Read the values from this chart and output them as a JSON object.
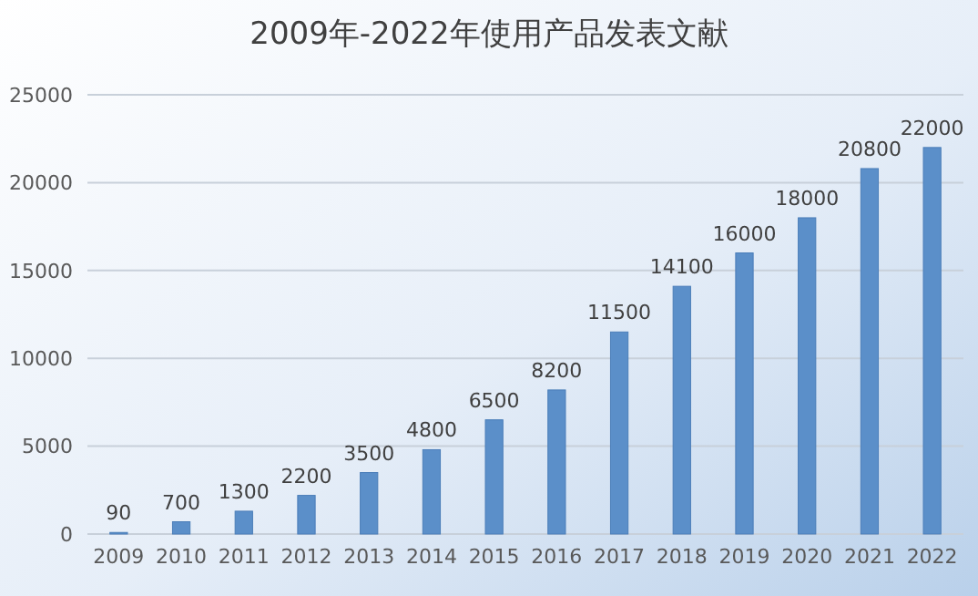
{
  "chart_data": {
    "type": "bar",
    "title": "2009年-2022年使用产品发表文献",
    "categories": [
      "2009",
      "2010",
      "2011",
      "2012",
      "2013",
      "2014",
      "2015",
      "2016",
      "2017",
      "2018",
      "2019",
      "2020",
      "2021",
      "2022"
    ],
    "values": [
      90,
      700,
      1300,
      2200,
      3500,
      4800,
      6500,
      8200,
      11500,
      14100,
      16000,
      18000,
      20800,
      22000
    ],
    "color": "#5b8fc9",
    "ylim": [
      0,
      25000
    ],
    "yticks": [
      0,
      5000,
      10000,
      15000,
      20000,
      25000
    ],
    "grid": "y",
    "data_labels": true
  }
}
